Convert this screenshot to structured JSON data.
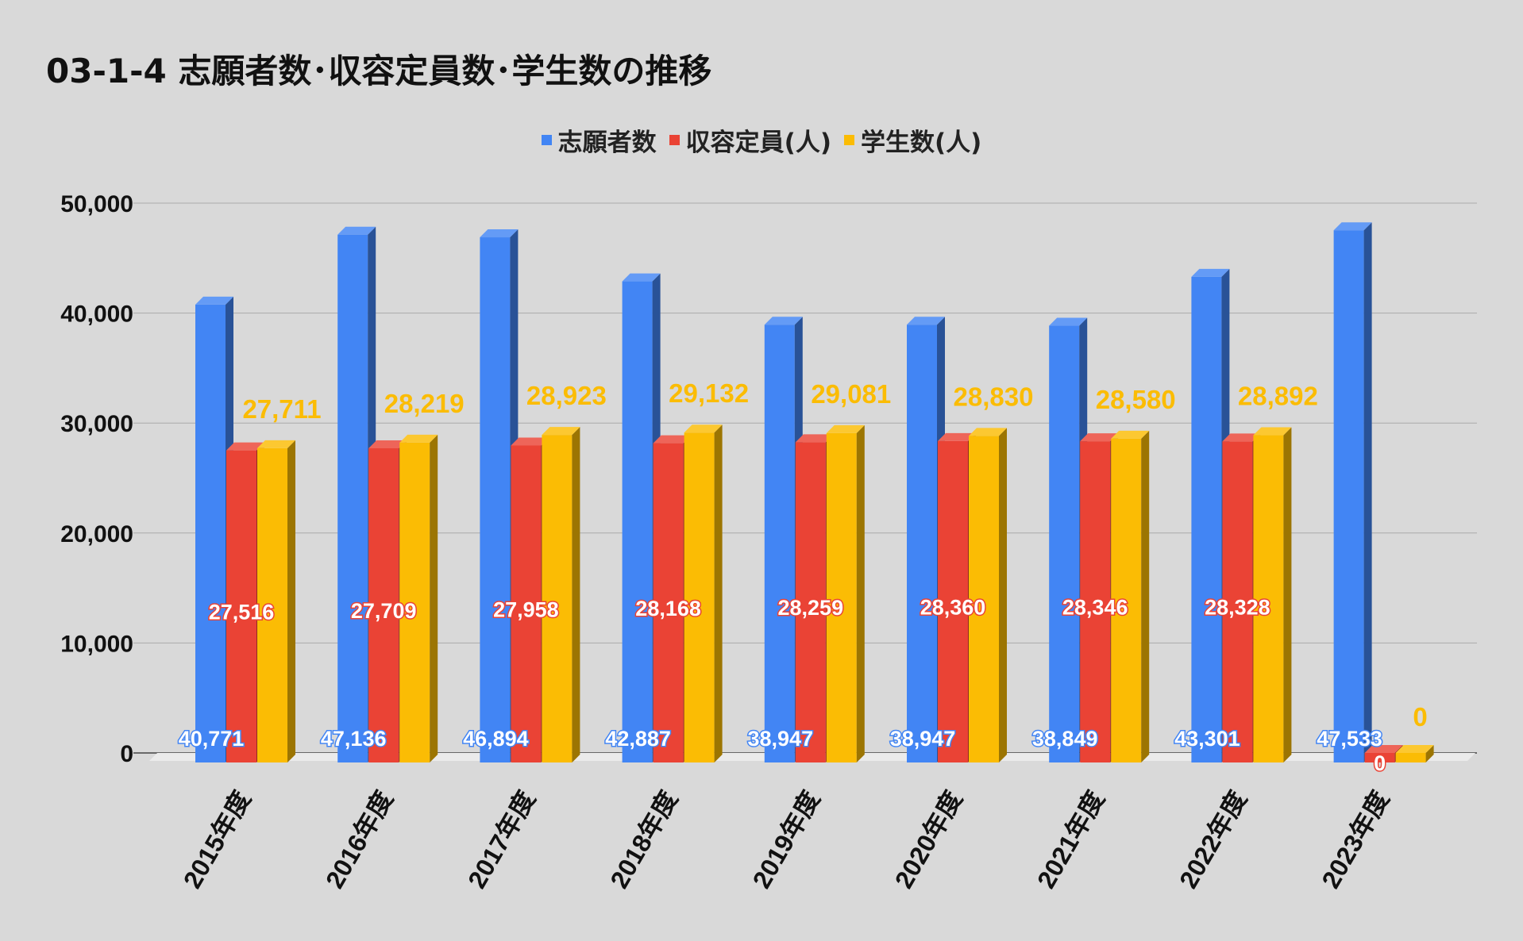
{
  "chart_data": {
    "type": "bar",
    "title": "03-1-4 志願者数･収容定員数･学生数の推移",
    "xlabel": "",
    "ylabel": "",
    "ylim": [
      0,
      50000
    ],
    "yticks": [
      0,
      10000,
      20000,
      30000,
      40000,
      50000
    ],
    "ytick_labels": [
      "0",
      "10,000",
      "20,000",
      "30,000",
      "40,000",
      "50,000"
    ],
    "grid": true,
    "legend_position": "top",
    "categories": [
      "2015年度",
      "2016年度",
      "2017年度",
      "2018年度",
      "2019年度",
      "2020年度",
      "2021年度",
      "2022年度",
      "2023年度"
    ],
    "series": [
      {
        "name": "志願者数",
        "color": "#4285f4",
        "values": [
          40771,
          47136,
          46894,
          42887,
          38947,
          38947,
          38849,
          43301,
          47533
        ],
        "labels": [
          "40,771",
          "47,136",
          "46,894",
          "42,887",
          "38,947",
          "38,947",
          "38,849",
          "43,301",
          "47,533"
        ]
      },
      {
        "name": "収容定員(人)",
        "color": "#ea4335",
        "values": [
          27516,
          27709,
          27958,
          28168,
          28259,
          28360,
          28346,
          28328,
          0
        ],
        "labels": [
          "27,516",
          "27,709",
          "27,958",
          "28,168",
          "28,259",
          "28,360",
          "28,346",
          "28,328",
          "0"
        ]
      },
      {
        "name": "学生数(人)",
        "color": "#fbbc04",
        "values": [
          27711,
          28219,
          28923,
          29132,
          29081,
          28830,
          28580,
          28892,
          0
        ],
        "labels": [
          "27,711",
          "28,219",
          "28,923",
          "29,132",
          "29,081",
          "28,830",
          "28,580",
          "28,892",
          "0"
        ]
      }
    ]
  }
}
